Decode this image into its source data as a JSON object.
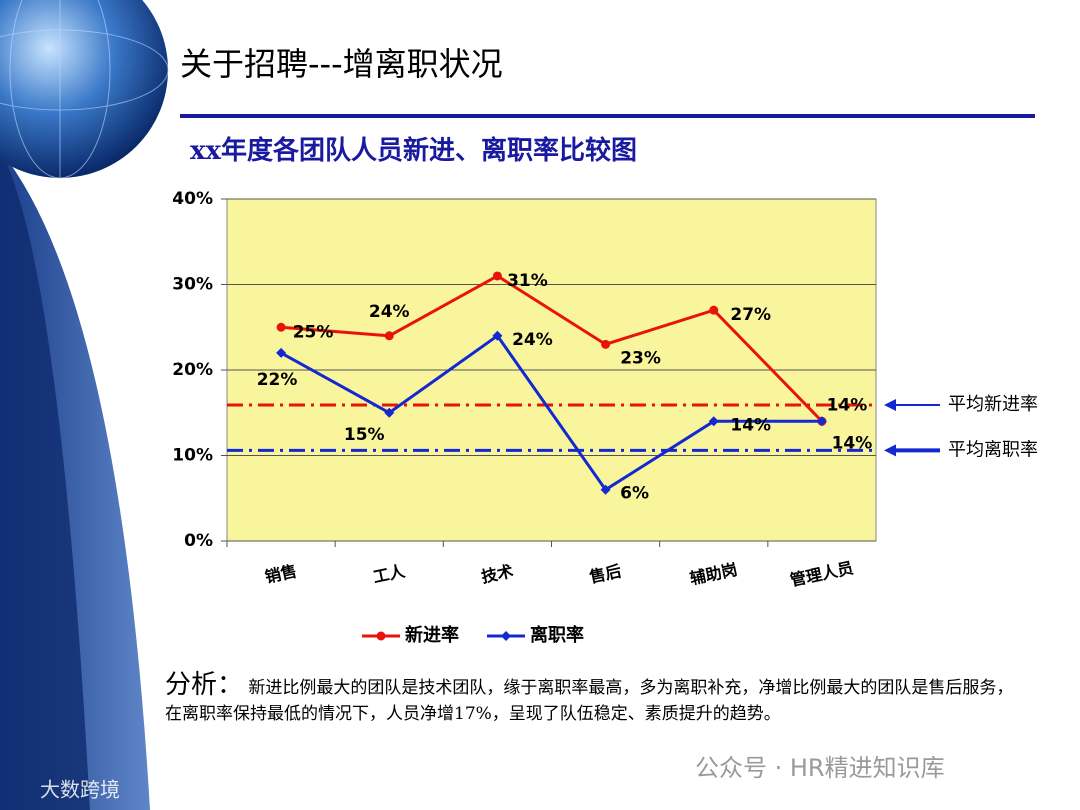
{
  "slide": {
    "title": "关于招聘---增离职状况",
    "watermarks": [
      "公众号 · HR精进知识库",
      "大数跨境"
    ]
  },
  "chart_data": {
    "type": "line",
    "title": "xx年度各团队人员新进、离职率比较图",
    "categories": [
      "销售",
      "工人",
      "技术",
      "售后",
      "辅助岗",
      "管理人员"
    ],
    "series": [
      {
        "name": "新进率",
        "color": "#e8140c",
        "marker": "circle",
        "values": [
          25,
          24,
          31,
          23,
          27,
          14
        ],
        "value_labels": [
          "25%",
          "24%",
          "31%",
          "23%",
          "27%",
          "14%"
        ]
      },
      {
        "name": "离职率",
        "color": "#1428d2",
        "marker": "diamond",
        "values": [
          22,
          15,
          24,
          6,
          14,
          14
        ],
        "value_labels": [
          "22%",
          "15%",
          "24%",
          "6%",
          "14%",
          "14%"
        ]
      }
    ],
    "ylim": [
      0,
      40
    ],
    "yticks": [
      {
        "value": 0,
        "label": "0%"
      },
      {
        "value": 10,
        "label": "10%"
      },
      {
        "value": 20,
        "label": "20%"
      },
      {
        "value": 30,
        "label": "30%"
      },
      {
        "value": 40,
        "label": "40%"
      }
    ],
    "grid": true,
    "legend": "bottom",
    "reference_lines": [
      {
        "label": "平均新进率",
        "value": 15.9,
        "color": "#e8140c"
      },
      {
        "label": "平均离职率",
        "value": 10.6,
        "color": "#1428d2"
      }
    ]
  },
  "analysis": {
    "label": "分析：",
    "text": "新进比例最大的团队是技术团队，缘于离职率最高，多为离职补充，净增比例最大的团队是售后服务，在离职率保持最低的情况下，人员净增17%，呈现了队伍稳定、素质提升的趋势。"
  }
}
